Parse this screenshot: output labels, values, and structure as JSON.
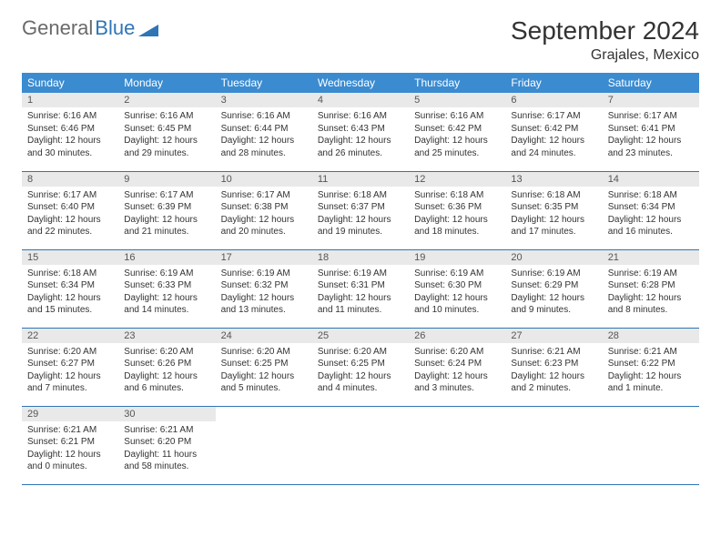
{
  "brand": {
    "part1": "General",
    "part2": "Blue"
  },
  "month_title": "September 2024",
  "location": "Grajales, Mexico",
  "colors": {
    "header_bg": "#3b8bd0",
    "header_text": "#ffffff",
    "daynum_bg": "#e9e9e9",
    "week_border": "#2f75b5",
    "logo_gray": "#6a6a6a",
    "logo_blue": "#2f75b5",
    "text": "#333333"
  },
  "day_names": [
    "Sunday",
    "Monday",
    "Tuesday",
    "Wednesday",
    "Thursday",
    "Friday",
    "Saturday"
  ],
  "days": [
    {
      "n": "1",
      "sunrise": "Sunrise: 6:16 AM",
      "sunset": "Sunset: 6:46 PM",
      "day1": "Daylight: 12 hours",
      "day2": "and 30 minutes."
    },
    {
      "n": "2",
      "sunrise": "Sunrise: 6:16 AM",
      "sunset": "Sunset: 6:45 PM",
      "day1": "Daylight: 12 hours",
      "day2": "and 29 minutes."
    },
    {
      "n": "3",
      "sunrise": "Sunrise: 6:16 AM",
      "sunset": "Sunset: 6:44 PM",
      "day1": "Daylight: 12 hours",
      "day2": "and 28 minutes."
    },
    {
      "n": "4",
      "sunrise": "Sunrise: 6:16 AM",
      "sunset": "Sunset: 6:43 PM",
      "day1": "Daylight: 12 hours",
      "day2": "and 26 minutes."
    },
    {
      "n": "5",
      "sunrise": "Sunrise: 6:16 AM",
      "sunset": "Sunset: 6:42 PM",
      "day1": "Daylight: 12 hours",
      "day2": "and 25 minutes."
    },
    {
      "n": "6",
      "sunrise": "Sunrise: 6:17 AM",
      "sunset": "Sunset: 6:42 PM",
      "day1": "Daylight: 12 hours",
      "day2": "and 24 minutes."
    },
    {
      "n": "7",
      "sunrise": "Sunrise: 6:17 AM",
      "sunset": "Sunset: 6:41 PM",
      "day1": "Daylight: 12 hours",
      "day2": "and 23 minutes."
    },
    {
      "n": "8",
      "sunrise": "Sunrise: 6:17 AM",
      "sunset": "Sunset: 6:40 PM",
      "day1": "Daylight: 12 hours",
      "day2": "and 22 minutes."
    },
    {
      "n": "9",
      "sunrise": "Sunrise: 6:17 AM",
      "sunset": "Sunset: 6:39 PM",
      "day1": "Daylight: 12 hours",
      "day2": "and 21 minutes."
    },
    {
      "n": "10",
      "sunrise": "Sunrise: 6:17 AM",
      "sunset": "Sunset: 6:38 PM",
      "day1": "Daylight: 12 hours",
      "day2": "and 20 minutes."
    },
    {
      "n": "11",
      "sunrise": "Sunrise: 6:18 AM",
      "sunset": "Sunset: 6:37 PM",
      "day1": "Daylight: 12 hours",
      "day2": "and 19 minutes."
    },
    {
      "n": "12",
      "sunrise": "Sunrise: 6:18 AM",
      "sunset": "Sunset: 6:36 PM",
      "day1": "Daylight: 12 hours",
      "day2": "and 18 minutes."
    },
    {
      "n": "13",
      "sunrise": "Sunrise: 6:18 AM",
      "sunset": "Sunset: 6:35 PM",
      "day1": "Daylight: 12 hours",
      "day2": "and 17 minutes."
    },
    {
      "n": "14",
      "sunrise": "Sunrise: 6:18 AM",
      "sunset": "Sunset: 6:34 PM",
      "day1": "Daylight: 12 hours",
      "day2": "and 16 minutes."
    },
    {
      "n": "15",
      "sunrise": "Sunrise: 6:18 AM",
      "sunset": "Sunset: 6:34 PM",
      "day1": "Daylight: 12 hours",
      "day2": "and 15 minutes."
    },
    {
      "n": "16",
      "sunrise": "Sunrise: 6:19 AM",
      "sunset": "Sunset: 6:33 PM",
      "day1": "Daylight: 12 hours",
      "day2": "and 14 minutes."
    },
    {
      "n": "17",
      "sunrise": "Sunrise: 6:19 AM",
      "sunset": "Sunset: 6:32 PM",
      "day1": "Daylight: 12 hours",
      "day2": "and 13 minutes."
    },
    {
      "n": "18",
      "sunrise": "Sunrise: 6:19 AM",
      "sunset": "Sunset: 6:31 PM",
      "day1": "Daylight: 12 hours",
      "day2": "and 11 minutes."
    },
    {
      "n": "19",
      "sunrise": "Sunrise: 6:19 AM",
      "sunset": "Sunset: 6:30 PM",
      "day1": "Daylight: 12 hours",
      "day2": "and 10 minutes."
    },
    {
      "n": "20",
      "sunrise": "Sunrise: 6:19 AM",
      "sunset": "Sunset: 6:29 PM",
      "day1": "Daylight: 12 hours",
      "day2": "and 9 minutes."
    },
    {
      "n": "21",
      "sunrise": "Sunrise: 6:19 AM",
      "sunset": "Sunset: 6:28 PM",
      "day1": "Daylight: 12 hours",
      "day2": "and 8 minutes."
    },
    {
      "n": "22",
      "sunrise": "Sunrise: 6:20 AM",
      "sunset": "Sunset: 6:27 PM",
      "day1": "Daylight: 12 hours",
      "day2": "and 7 minutes."
    },
    {
      "n": "23",
      "sunrise": "Sunrise: 6:20 AM",
      "sunset": "Sunset: 6:26 PM",
      "day1": "Daylight: 12 hours",
      "day2": "and 6 minutes."
    },
    {
      "n": "24",
      "sunrise": "Sunrise: 6:20 AM",
      "sunset": "Sunset: 6:25 PM",
      "day1": "Daylight: 12 hours",
      "day2": "and 5 minutes."
    },
    {
      "n": "25",
      "sunrise": "Sunrise: 6:20 AM",
      "sunset": "Sunset: 6:25 PM",
      "day1": "Daylight: 12 hours",
      "day2": "and 4 minutes."
    },
    {
      "n": "26",
      "sunrise": "Sunrise: 6:20 AM",
      "sunset": "Sunset: 6:24 PM",
      "day1": "Daylight: 12 hours",
      "day2": "and 3 minutes."
    },
    {
      "n": "27",
      "sunrise": "Sunrise: 6:21 AM",
      "sunset": "Sunset: 6:23 PM",
      "day1": "Daylight: 12 hours",
      "day2": "and 2 minutes."
    },
    {
      "n": "28",
      "sunrise": "Sunrise: 6:21 AM",
      "sunset": "Sunset: 6:22 PM",
      "day1": "Daylight: 12 hours",
      "day2": "and 1 minute."
    },
    {
      "n": "29",
      "sunrise": "Sunrise: 6:21 AM",
      "sunset": "Sunset: 6:21 PM",
      "day1": "Daylight: 12 hours",
      "day2": "and 0 minutes."
    },
    {
      "n": "30",
      "sunrise": "Sunrise: 6:21 AM",
      "sunset": "Sunset: 6:20 PM",
      "day1": "Daylight: 11 hours",
      "day2": "and 58 minutes."
    }
  ]
}
